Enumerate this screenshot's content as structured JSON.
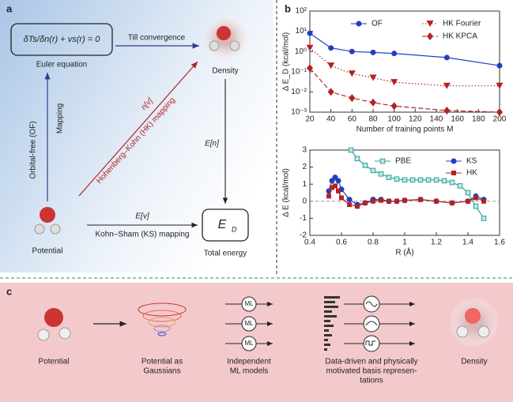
{
  "panel_a": {
    "label": "a",
    "equation": "δTs/δn(r) + vs(r) = 0",
    "euler": "Euler equation",
    "till": "Till convergence",
    "density": "Density",
    "of": "Orbital-free (OF)",
    "mapping": "Mapping",
    "nv": "n[v]",
    "hk": "Hohenberg–Kohn (HK) mapping",
    "en": "E[n]",
    "ev": "E[v]",
    "ks": "Kohn–Sham (KS) mapping",
    "potential": "Potential",
    "energy_symbol": "E",
    "energy_subscript": "D",
    "total": "Total energy"
  },
  "panel_b": {
    "label": "b"
  },
  "panel_c": {
    "label": "c",
    "items": [
      [
        "Potential"
      ],
      [
        "Potential as",
        "Gaussians"
      ],
      [
        "Independent",
        "ML models"
      ],
      [
        "Data-driven and physically",
        "motivated basis represen-",
        "tations"
      ],
      [
        "Density"
      ]
    ],
    "models": [
      "ML",
      "ML",
      "ML"
    ]
  },
  "chart_data": [
    {
      "type": "line",
      "log_y": true,
      "xlabel": "Number of training points M",
      "ylabel": "Δ E_D (kcal/mol)",
      "x": [
        20,
        40,
        60,
        80,
        100,
        150,
        200
      ],
      "series": [
        {
          "name": "OF",
          "color": "#1f3fbf",
          "marker": "circle",
          "dash": "solid",
          "values": [
            8,
            1.5,
            1,
            0.9,
            0.8,
            0.5,
            0.2
          ]
        },
        {
          "name": "HK Fourier",
          "color": "#b22222",
          "marker": "triangle",
          "dash": "dotted",
          "values": [
            1.5,
            0.2,
            0.08,
            0.05,
            0.03,
            0.02,
            0.02
          ]
        },
        {
          "name": "HK KPCA",
          "color": "#b22222",
          "marker": "diamond",
          "dash": "dashed",
          "values": [
            0.15,
            0.01,
            0.005,
            0.003,
            0.002,
            0.0012,
            0.001
          ]
        }
      ],
      "xlim": [
        20,
        200
      ],
      "xticks": [
        20,
        40,
        60,
        80,
        100,
        120,
        140,
        160,
        180,
        200
      ],
      "ylim": [
        0.001,
        100
      ],
      "yticks": [
        {
          "value": 0.001,
          "label": "10⁻³"
        },
        {
          "value": 0.01,
          "label": "10⁻²"
        },
        {
          "value": 0.1,
          "label": "10⁻¹"
        },
        {
          "value": 1,
          "label": "10⁰"
        },
        {
          "value": 10,
          "label": "10¹"
        },
        {
          "value": 100,
          "label": "10²"
        }
      ]
    },
    {
      "type": "line",
      "log_y": false,
      "xlabel": "R (Å)",
      "ylabel": "Δ E (kcal/mol)",
      "series": [
        {
          "name": "PBE",
          "color": "#2aa198",
          "marker": "square-open",
          "dash": "solid",
          "x": [
            0.66,
            0.7,
            0.75,
            0.8,
            0.85,
            0.9,
            0.95,
            1.0,
            1.05,
            1.1,
            1.15,
            1.2,
            1.25,
            1.3,
            1.35,
            1.4,
            1.45,
            1.5
          ],
          "values": [
            3,
            2.5,
            2.1,
            1.8,
            1.6,
            1.4,
            1.3,
            1.25,
            1.25,
            1.25,
            1.25,
            1.25,
            1.2,
            1.1,
            0.9,
            0.5,
            -0.3,
            -1.0
          ]
        },
        {
          "name": "KS",
          "color": "#1f3fbf",
          "marker": "circle",
          "dash": "solid",
          "x": [
            0.52,
            0.54,
            0.56,
            0.58,
            0.6,
            0.65,
            0.7,
            0.75,
            0.8,
            0.85,
            0.9,
            0.95,
            1.0,
            1.1,
            1.2,
            1.3,
            1.4,
            1.45,
            1.5
          ],
          "values": [
            0.6,
            1.2,
            1.4,
            1.2,
            0.7,
            0.1,
            -0.2,
            -0.1,
            0.1,
            0.1,
            0,
            0,
            0.05,
            0.1,
            0,
            -0.1,
            0,
            0.3,
            0.1
          ]
        },
        {
          "name": "HK",
          "color": "#b22222",
          "marker": "square",
          "dash": "solid",
          "x": [
            0.52,
            0.54,
            0.56,
            0.58,
            0.6,
            0.65,
            0.7,
            0.75,
            0.8,
            0.85,
            0.9,
            0.95,
            1.0,
            1.1,
            1.2,
            1.3,
            1.4,
            1.45,
            1.5
          ],
          "values": [
            0.3,
            0.8,
            0.9,
            0.6,
            0.2,
            -0.2,
            -0.3,
            -0.1,
            0,
            0.05,
            0,
            0,
            0.05,
            0.1,
            0,
            -0.1,
            0,
            0.2,
            0
          ]
        }
      ],
      "xlim": [
        0.4,
        1.6
      ],
      "xticks": [
        0.4,
        0.6,
        0.8,
        1.0,
        1.2,
        1.4,
        1.6
      ],
      "ylim": [
        -2,
        3
      ],
      "yticks": [
        -2,
        -1,
        0,
        1,
        2,
        3
      ]
    }
  ]
}
